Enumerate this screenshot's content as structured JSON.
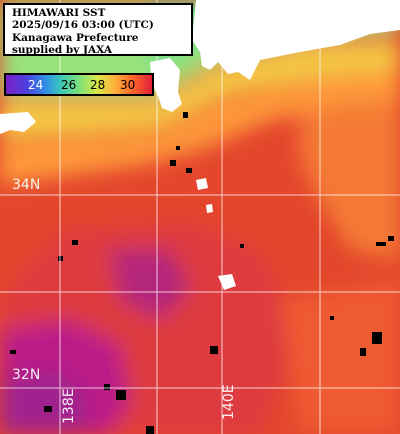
{
  "header": {
    "lines": [
      "HIMAWARI SST",
      "2025/09/16 03:00 (UTC)",
      "Kanagawa Prefecture",
      "supplied by JAXA"
    ]
  },
  "legend": {
    "ticks": [
      "24",
      "26",
      "28",
      "30"
    ],
    "colors": [
      "#7a1fc2",
      "#4d3fe0",
      "#2f8fe6",
      "#3cc9b8",
      "#7be07a",
      "#d6e84a",
      "#ffb43a",
      "#ff6a2a",
      "#e0203a"
    ]
  },
  "grid": {
    "latitude_labels": [
      "34N",
      "32N"
    ],
    "longitude_labels": [
      "138E",
      "140E"
    ]
  },
  "colors": {
    "land": "#ffffff",
    "warm_sea": "#e4452d",
    "mid_sea": "#ff8a3a",
    "cool_sea": "#8ae07a",
    "hot_sea": "#c41e8a",
    "gridline": "#ffffff"
  }
}
